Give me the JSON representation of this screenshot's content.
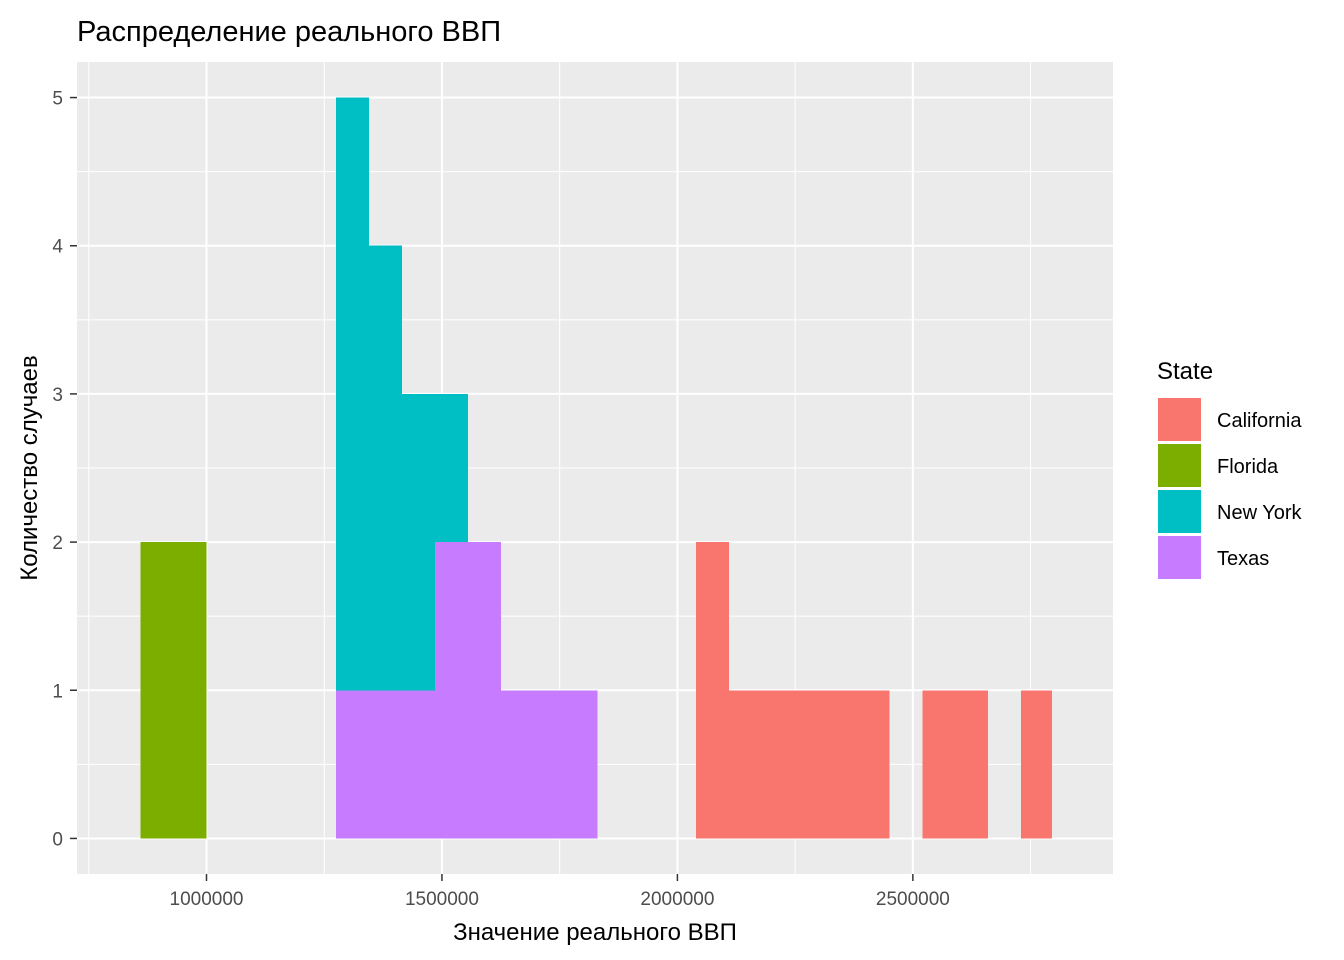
{
  "chart_data": {
    "type": "bar",
    "title": "Распределение реального ВВП",
    "xlabel": "Значение реального ВВП",
    "ylabel": "Количество случаев",
    "xlim": [
      725000,
      2925000
    ],
    "ylim": [
      -0.24,
      5.24
    ],
    "x_ticks": [
      1000000,
      1500000,
      2000000,
      2500000
    ],
    "x_tick_labels": [
      "1000000",
      "1500000",
      "2000000",
      "2500000"
    ],
    "y_ticks": [
      0,
      1,
      2,
      3,
      4,
      5
    ],
    "y_tick_labels": [
      "0",
      "1",
      "2",
      "3",
      "4",
      "5"
    ],
    "stacked": true,
    "grid": true,
    "legend": {
      "title": "State",
      "position": "right"
    },
    "series": [
      {
        "name": "California",
        "color": "#F8766D",
        "bins": [
          {
            "x0": 2040000,
            "x1": 2110000,
            "count": 2
          },
          {
            "x0": 2110000,
            "x1": 2180000,
            "count": 1
          },
          {
            "x0": 2180000,
            "x1": 2245000,
            "count": 1
          },
          {
            "x0": 2245000,
            "x1": 2315000,
            "count": 1
          },
          {
            "x0": 2315000,
            "x1": 2385000,
            "count": 1
          },
          {
            "x0": 2385000,
            "x1": 2450000,
            "count": 1
          },
          {
            "x0": 2520000,
            "x1": 2590000,
            "count": 1
          },
          {
            "x0": 2590000,
            "x1": 2660000,
            "count": 1
          },
          {
            "x0": 2730000,
            "x1": 2795000,
            "count": 1
          }
        ]
      },
      {
        "name": "Florida",
        "color": "#7CAE00",
        "bins": [
          {
            "x0": 860000,
            "x1": 930000,
            "count": 2
          },
          {
            "x0": 930000,
            "x1": 1000000,
            "count": 2
          }
        ]
      },
      {
        "name": "New York",
        "color": "#00BFC4",
        "bins": [
          {
            "x0": 1275000,
            "x1": 1345000,
            "count": 4
          },
          {
            "x0": 1345000,
            "x1": 1415000,
            "count": 3
          },
          {
            "x0": 1415000,
            "x1": 1485000,
            "count": 2
          },
          {
            "x0": 1485000,
            "x1": 1555000,
            "count": 1
          }
        ]
      },
      {
        "name": "Texas",
        "color": "#C77CFF",
        "bins": [
          {
            "x0": 1275000,
            "x1": 1345000,
            "count": 1
          },
          {
            "x0": 1345000,
            "x1": 1415000,
            "count": 1
          },
          {
            "x0": 1415000,
            "x1": 1485000,
            "count": 1
          },
          {
            "x0": 1485000,
            "x1": 1555000,
            "count": 2
          },
          {
            "x0": 1555000,
            "x1": 1625000,
            "count": 2
          },
          {
            "x0": 1625000,
            "x1": 1695000,
            "count": 1
          },
          {
            "x0": 1695000,
            "x1": 1760000,
            "count": 1
          },
          {
            "x0": 1760000,
            "x1": 1830000,
            "count": 1
          }
        ]
      }
    ]
  }
}
